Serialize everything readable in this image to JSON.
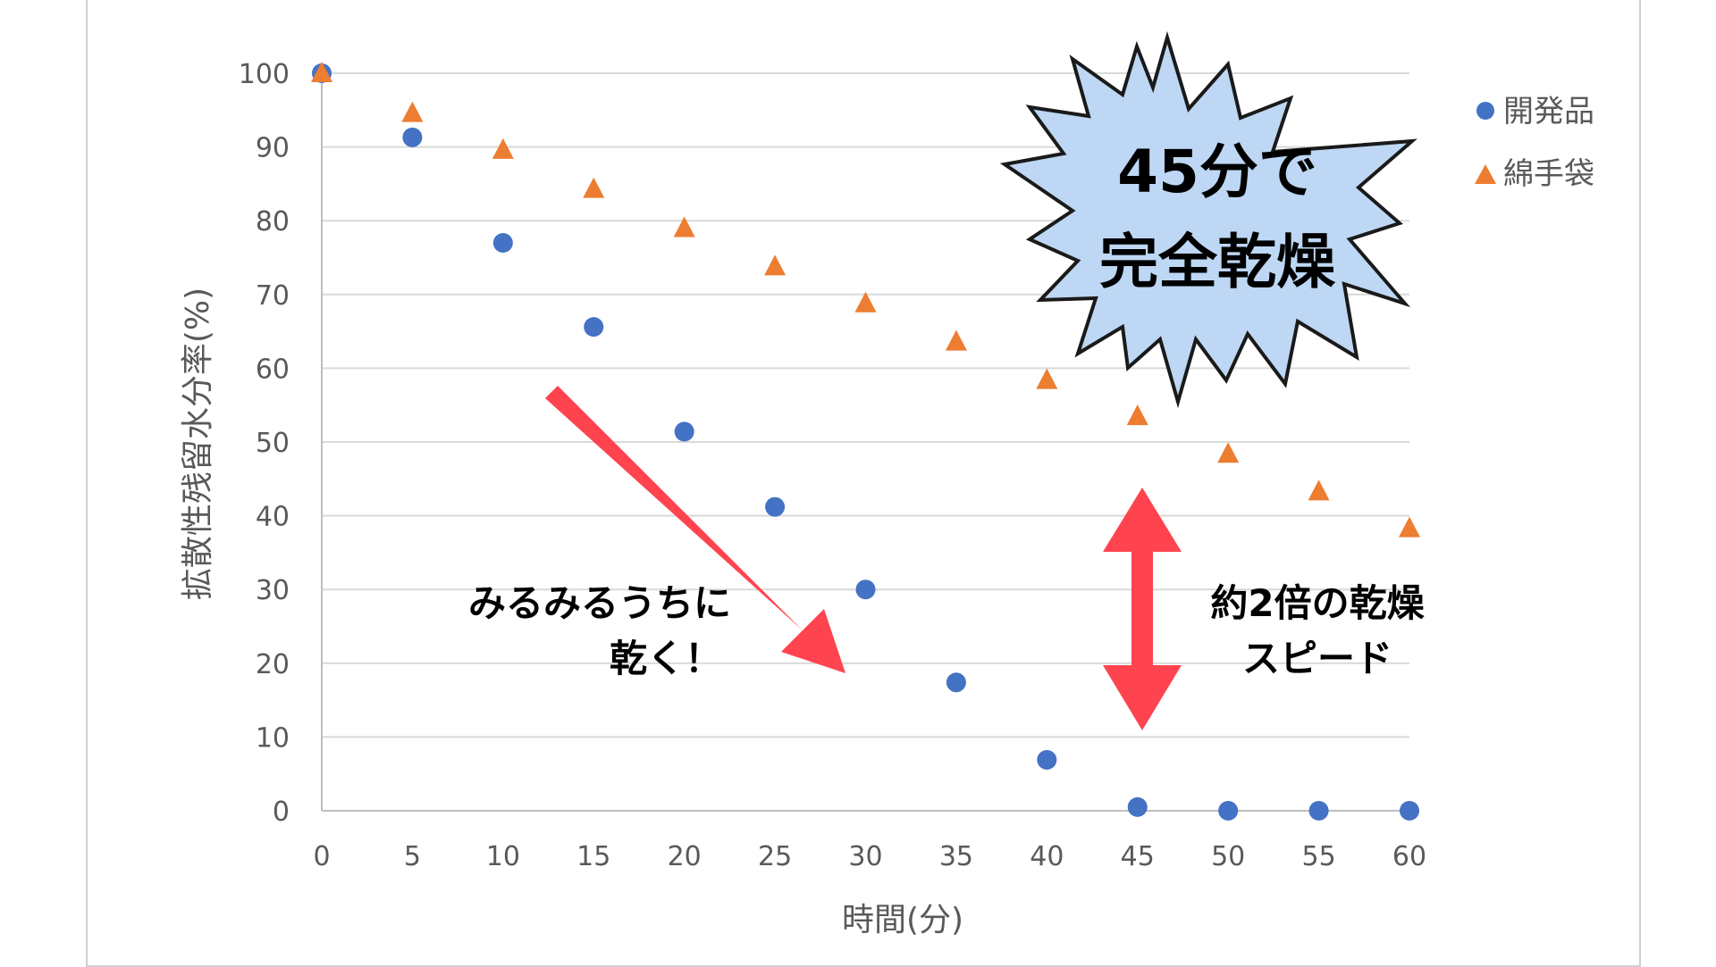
{
  "chart_data": {
    "type": "scatter",
    "title": "",
    "xlabel": "時間(分)",
    "ylabel": "拡散性残留水分率(%)",
    "xlim": [
      0,
      60
    ],
    "ylim": [
      0,
      100
    ],
    "xticks": [
      "0",
      "5",
      "10",
      "15",
      "20",
      "25",
      "30",
      "35",
      "40",
      "45",
      "50",
      "55",
      "60"
    ],
    "yticks": [
      "0",
      "10",
      "20",
      "30",
      "40",
      "50",
      "60",
      "70",
      "80",
      "90",
      "100"
    ],
    "grid": "horizontal",
    "legend_position": "right",
    "series": [
      {
        "name": "開発品",
        "marker": "circle",
        "color": "#4472C4",
        "x": [
          0,
          5,
          10,
          15,
          20,
          25,
          30,
          35,
          40,
          45,
          50,
          55,
          60
        ],
        "y": [
          100,
          91.3,
          77,
          65.6,
          51.4,
          41.2,
          30,
          17.4,
          6.9,
          0.5,
          0,
          0,
          0
        ]
      },
      {
        "name": "綿手袋",
        "marker": "triangle",
        "color": "#ED7D31",
        "x": [
          0,
          5,
          10,
          15,
          20,
          25,
          30,
          35,
          40,
          45,
          50,
          55,
          60
        ],
        "y": [
          100,
          94.6,
          89.6,
          84.3,
          79,
          73.8,
          68.8,
          63.6,
          58.4,
          53.5,
          48.4,
          43.3,
          38.3
        ]
      }
    ],
    "annotations": {
      "burst_line1": "45分で",
      "burst_line2": "完全乾燥",
      "arrow_text_line1": "みるみるうちに",
      "arrow_text_line2": "乾く！",
      "gap_text_line1": "約2倍の乾燥",
      "gap_text_line2": "スピード",
      "burst_color": "#BDD7F4",
      "arrow_color": "#FF444F"
    }
  }
}
